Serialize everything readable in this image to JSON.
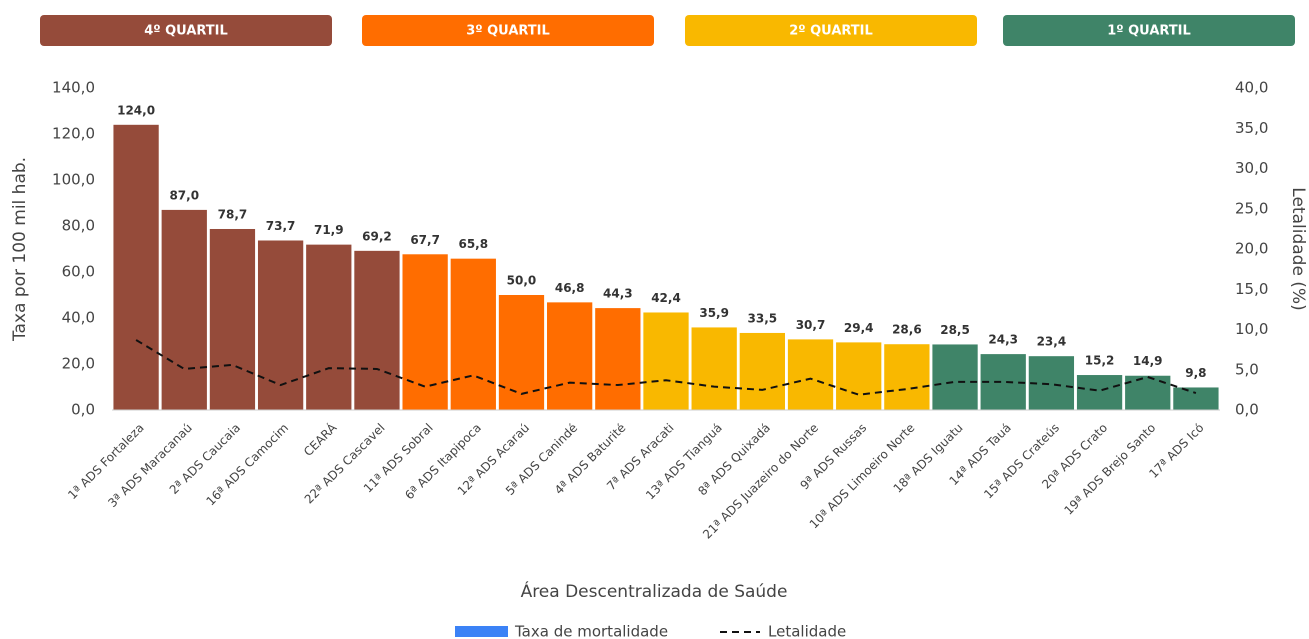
{
  "chart_data": {
    "type": "bar",
    "quartiles": [
      {
        "label": "4º QUARTIL",
        "color": "#954b3a"
      },
      {
        "label": "3º QUARTIL",
        "color": "#ff6d00"
      },
      {
        "label": "2º QUARTIL",
        "color": "#f9b800"
      },
      {
        "label": "1º QUARTIL",
        "color": "#3f8468"
      }
    ],
    "x_label": "Área Descentralizada de Saúde",
    "y_label": "Taxa por 100 mil hab.",
    "y2_label": "Letalidade (%)",
    "categories": [
      "1ª ADS Fortaleza",
      "3ª ADS Maracanaú",
      "2ª ADS Caucaia",
      "16ª ADS Camocim",
      "CEARÁ",
      "22ª ADS Cascavel",
      "11ª ADS Sobral",
      "6ª ADS Itapipoca",
      "12ª ADS Acaraú",
      "5ª ADS Canindé",
      "4ª ADS Baturité",
      "7ª ADS Aracati",
      "13ª ADS Tianguá",
      "8ª ADS Quixadá",
      "21ª ADS Juazeiro do Norte",
      "9ª ADS Russas",
      "10ª ADS Limoeiro Norte",
      "18ª ADS Iguatu",
      "14ª ADS Tauá",
      "15ª ADS Crateús",
      "20ª ADS Crato",
      "19ª ADS Brejo Santo",
      "17ª ADS Icó"
    ],
    "series": [
      {
        "name": "Taxa de mortalidade",
        "type": "bar",
        "color": "#3b82f6",
        "colors": [
          "#954b3a",
          "#954b3a",
          "#954b3a",
          "#954b3a",
          "#954b3a",
          "#954b3a",
          "#ff6d00",
          "#ff6d00",
          "#ff6d00",
          "#ff6d00",
          "#ff6d00",
          "#f9b800",
          "#f9b800",
          "#f9b800",
          "#f9b800",
          "#f9b800",
          "#f9b800",
          "#3f8468",
          "#3f8468",
          "#3f8468",
          "#3f8468",
          "#3f8468",
          "#3f8468"
        ],
        "values": [
          124.0,
          87.0,
          78.7,
          73.7,
          71.9,
          69.2,
          67.7,
          65.8,
          50.0,
          46.8,
          44.3,
          42.4,
          35.9,
          33.5,
          30.7,
          29.4,
          28.6,
          28.5,
          24.3,
          23.4,
          15.2,
          14.9,
          9.8
        ],
        "value_labels": [
          "124,0",
          "87,0",
          "78,7",
          "73,7",
          "71,9",
          "69,2",
          "67,7",
          "65,8",
          "50,0",
          "46,8",
          "44,3",
          "42,4",
          "35,9",
          "33,5",
          "30,7",
          "29,4",
          "28,6",
          "28,5",
          "24,3",
          "23,4",
          "15,2",
          "14,9",
          "9,8"
        ]
      },
      {
        "name": "Letalidade",
        "type": "line",
        "axis": "y2",
        "color": "#111111",
        "dashed": true,
        "values": [
          8.7,
          5.1,
          5.6,
          3.1,
          5.2,
          5.1,
          2.9,
          4.3,
          2.0,
          3.4,
          3.1,
          3.7,
          2.9,
          2.5,
          3.9,
          1.9,
          2.6,
          3.5,
          3.5,
          3.2,
          2.4,
          4.1,
          2.1
        ]
      }
    ],
    "ylim": [
      0,
      140
    ],
    "yticks": [
      {
        "value": 0,
        "label": "0,0"
      },
      {
        "value": 20,
        "label": "20,0"
      },
      {
        "value": 40,
        "label": "40,0"
      },
      {
        "value": 60,
        "label": "60,0"
      },
      {
        "value": 80,
        "label": "80,0"
      },
      {
        "value": 100,
        "label": "100,0"
      },
      {
        "value": 120,
        "label": "120,0"
      },
      {
        "value": 140,
        "label": "140,0"
      }
    ],
    "y2lim": [
      0,
      40
    ],
    "y2ticks": [
      {
        "value": 0,
        "label": "0,0"
      },
      {
        "value": 5,
        "label": "5,0"
      },
      {
        "value": 10,
        "label": "10,0"
      },
      {
        "value": 15,
        "label": "15,0"
      },
      {
        "value": 20,
        "label": "20,0"
      },
      {
        "value": 25,
        "label": "25,0"
      },
      {
        "value": 30,
        "label": "30,0"
      },
      {
        "value": 35,
        "label": "35,0"
      },
      {
        "value": 40,
        "label": "40,0"
      }
    ],
    "grid": false,
    "legend": "bottom"
  }
}
